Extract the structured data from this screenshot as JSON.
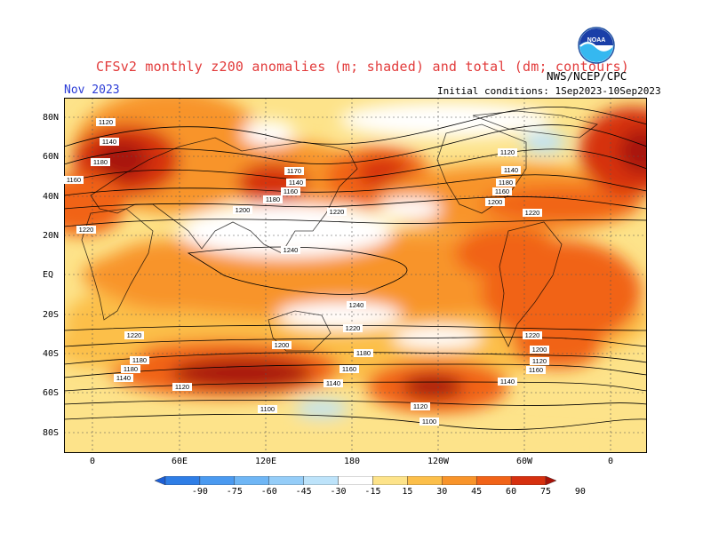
{
  "title": "CFSv2 monthly z200 anomalies (m; shaded) and total (dm; contours)",
  "valid_month": "Nov 2023",
  "org": "NWS/NCEP/CPC",
  "initial_conditions": "Initial conditions: 1Sep2023-10Sep2023",
  "logo_text": "NOAA",
  "lat_labels": [
    "80N",
    "60N",
    "40N",
    "20N",
    "EQ",
    "20S",
    "40S",
    "60S",
    "80S"
  ],
  "lon_labels": [
    "0",
    "60E",
    "120E",
    "180",
    "120W",
    "60W",
    "0"
  ],
  "contour_labels": [
    "1120",
    "1140",
    "1160",
    "1180",
    "1200",
    "1220",
    "1240",
    "1100"
  ],
  "colorbar": {
    "ticks": [
      "-90",
      "-75",
      "-60",
      "-45",
      "-30",
      "-15",
      "15",
      "30",
      "45",
      "60",
      "75",
      "90"
    ],
    "colors": [
      "#1d5fd6",
      "#2f7ee6",
      "#4b9af0",
      "#6fb6f5",
      "#95cdf8",
      "#bde3fa",
      "#ffffff",
      "#fde38a",
      "#fcbf4a",
      "#f8942a",
      "#f16318",
      "#d6300f",
      "#a81208"
    ]
  }
}
